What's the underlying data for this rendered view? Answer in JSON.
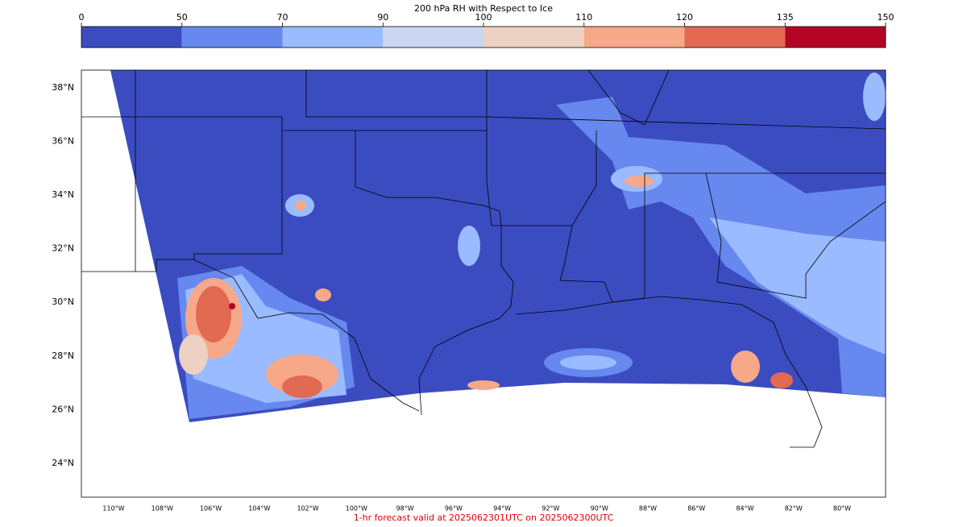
{
  "colorbar": {
    "title": "200 hPa RH with Respect to Ice",
    "ticks": [
      0,
      50,
      70,
      90,
      100,
      110,
      120,
      135,
      150
    ],
    "colors": [
      "#3b4cc0",
      "#6788ee",
      "#9abbff",
      "#c9d7f0",
      "#edd1c2",
      "#f7a889",
      "#e26952",
      "#b40426"
    ]
  },
  "map": {
    "lat_labels": [
      "24°N",
      "26°N",
      "28°N",
      "30°N",
      "32°N",
      "34°N",
      "36°N",
      "38°N"
    ],
    "lon_labels": [
      "110°W",
      "108°W",
      "106°W",
      "104°W",
      "102°W",
      "100°W",
      "98°W",
      "96°W",
      "94°W",
      "92°W",
      "90°W",
      "88°W",
      "86°W",
      "84°W",
      "82°W",
      "80°W"
    ]
  },
  "footer": "1-hr forecast valid at 2025062301UTC on 2025062300UTC"
}
